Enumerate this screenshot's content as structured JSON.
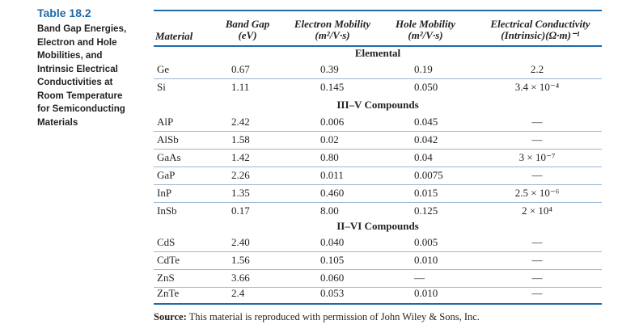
{
  "caption": {
    "number": "Table 18.2",
    "lines": [
      "Band Gap Energies,",
      "Electron and Hole",
      "Mobilities, and",
      "Intrinsic Electrical",
      "Conductivities at",
      "Room Temperature",
      "for Semiconducting",
      "Materials"
    ]
  },
  "header": {
    "material": "Material",
    "band_gap": [
      "Band Gap",
      "(eV)"
    ],
    "electron_mobility": [
      "Electron Mobility",
      "(m²/V·s)"
    ],
    "hole_mobility": [
      "Hole Mobility",
      "(m²/V·s)"
    ],
    "conductivity": [
      "Electrical Conductivity",
      "(Intrinsic)(Ω·m)⁻¹"
    ]
  },
  "sections": [
    {
      "title": "Elemental",
      "rows": [
        [
          "Ge",
          "0.67",
          "0.39",
          "0.19",
          "2.2"
        ],
        [
          "Si",
          "1.11",
          "0.145",
          "0.050",
          "3.4 × 10⁻⁴"
        ]
      ]
    },
    {
      "title": "III–V Compounds",
      "rows": [
        [
          "AlP",
          "2.42",
          "0.006",
          "0.045",
          "—"
        ],
        [
          "AlSb",
          "1.58",
          "0.02",
          "0.042",
          "—"
        ],
        [
          "GaAs",
          "1.42",
          "0.80",
          "0.04",
          "3 × 10⁻⁷"
        ],
        [
          "GaP",
          "2.26",
          "0.011",
          "0.0075",
          "—"
        ],
        [
          "InP",
          "1.35",
          "0.460",
          "0.015",
          "2.5 × 10⁻⁶"
        ],
        [
          "InSb",
          "0.17",
          "8.00",
          "0.125",
          "2 × 10⁴"
        ]
      ]
    },
    {
      "title": "II–VI Compounds",
      "rows": [
        [
          "CdS",
          "2.40",
          "0.040",
          "0.005",
          "—"
        ],
        [
          "CdTe",
          "1.56",
          "0.105",
          "0.010",
          "—"
        ],
        [
          "ZnS",
          "3.66",
          "0.060",
          "—",
          "—"
        ],
        [
          "ZnTe",
          "2.4",
          "0.053",
          "0.010",
          "—"
        ]
      ]
    }
  ],
  "source": {
    "label": "Source:",
    "text": " This material is reproduced with permission of John Wiley & Sons, Inc."
  }
}
